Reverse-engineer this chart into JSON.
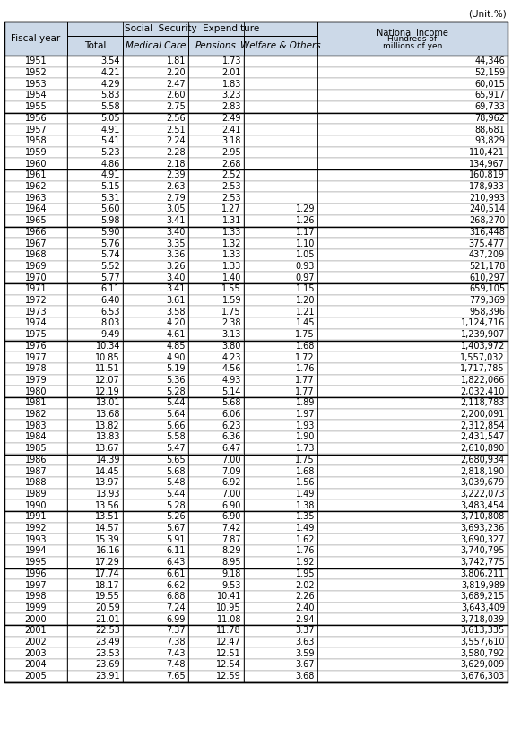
{
  "unit_label": "(Unit:%)",
  "col_headers_row1_text": "Social  Security  Expenditure",
  "col_headers_row2": [
    "Total",
    "Medical Care",
    "Pensions",
    "Welfare & Others"
  ],
  "col_headers_row2_italic": [
    false,
    true,
    true,
    true
  ],
  "fiscal_year_label": "Fiscal year",
  "national_income_label1": "National Income",
  "national_income_label2": "Hundreds of",
  "national_income_label3": "millions of yen",
  "rows": [
    [
      "1951",
      "3.54",
      "1.81",
      "1.73",
      "",
      "44,346"
    ],
    [
      "1952",
      "4.21",
      "2.20",
      "2.01",
      "",
      "52,159"
    ],
    [
      "1953",
      "4.29",
      "2.47",
      "1.83",
      "",
      "60,015"
    ],
    [
      "1954",
      "5.83",
      "2.60",
      "3.23",
      "",
      "65,917"
    ],
    [
      "1955",
      "5.58",
      "2.75",
      "2.83",
      "",
      "69,733"
    ],
    [
      "1956",
      "5.05",
      "2.56",
      "2.49",
      "",
      "78,962"
    ],
    [
      "1957",
      "4.91",
      "2.51",
      "2.41",
      "",
      "88,681"
    ],
    [
      "1958",
      "5.41",
      "2.24",
      "3.18",
      "",
      "93,829"
    ],
    [
      "1959",
      "5.23",
      "2.28",
      "2.95",
      "",
      "110,421"
    ],
    [
      "1960",
      "4.86",
      "2.18",
      "2.68",
      "",
      "134,967"
    ],
    [
      "1961",
      "4.91",
      "2.39",
      "2.52",
      "",
      "160,819"
    ],
    [
      "1962",
      "5.15",
      "2.63",
      "2.53",
      "",
      "178,933"
    ],
    [
      "1963",
      "5.31",
      "2.79",
      "2.53",
      "",
      "210,993"
    ],
    [
      "1964",
      "5.60",
      "3.05",
      "1.27",
      "1.29",
      "240,514"
    ],
    [
      "1965",
      "5.98",
      "3.41",
      "1.31",
      "1.26",
      "268,270"
    ],
    [
      "1966",
      "5.90",
      "3.40",
      "1.33",
      "1.17",
      "316,448"
    ],
    [
      "1967",
      "5.76",
      "3.35",
      "1.32",
      "1.10",
      "375,477"
    ],
    [
      "1968",
      "5.74",
      "3.36",
      "1.33",
      "1.05",
      "437,209"
    ],
    [
      "1969",
      "5.52",
      "3.26",
      "1.33",
      "0.93",
      "521,178"
    ],
    [
      "1970",
      "5.77",
      "3.40",
      "1.40",
      "0.97",
      "610,297"
    ],
    [
      "1971",
      "6.11",
      "3.41",
      "1.55",
      "1.15",
      "659,105"
    ],
    [
      "1972",
      "6.40",
      "3.61",
      "1.59",
      "1.20",
      "779,369"
    ],
    [
      "1973",
      "6.53",
      "3.58",
      "1.75",
      "1.21",
      "958,396"
    ],
    [
      "1974",
      "8.03",
      "4.20",
      "2.38",
      "1.45",
      "1,124,716"
    ],
    [
      "1975",
      "9.49",
      "4.61",
      "3.13",
      "1.75",
      "1,239,907"
    ],
    [
      "1976",
      "10.34",
      "4.85",
      "3.80",
      "1.68",
      "1,403,972"
    ],
    [
      "1977",
      "10.85",
      "4.90",
      "4.23",
      "1.72",
      "1,557,032"
    ],
    [
      "1978",
      "11.51",
      "5.19",
      "4.56",
      "1.76",
      "1,717,785"
    ],
    [
      "1979",
      "12.07",
      "5.36",
      "4.93",
      "1.77",
      "1,822,066"
    ],
    [
      "1980",
      "12.19",
      "5.28",
      "5.14",
      "1.77",
      "2,032,410"
    ],
    [
      "1981",
      "13.01",
      "5.44",
      "5.68",
      "1.89",
      "2,118,783"
    ],
    [
      "1982",
      "13.68",
      "5.64",
      "6.06",
      "1.97",
      "2,200,091"
    ],
    [
      "1983",
      "13.82",
      "5.66",
      "6.23",
      "1.93",
      "2,312,854"
    ],
    [
      "1984",
      "13.83",
      "5.58",
      "6.36",
      "1.90",
      "2,431,547"
    ],
    [
      "1985",
      "13.67",
      "5.47",
      "6.47",
      "1.73",
      "2,610,890"
    ],
    [
      "1986",
      "14.39",
      "5.65",
      "7.00",
      "1.75",
      "2,680,934"
    ],
    [
      "1987",
      "14.45",
      "5.68",
      "7.09",
      "1.68",
      "2,818,190"
    ],
    [
      "1988",
      "13.97",
      "5.48",
      "6.92",
      "1.56",
      "3,039,679"
    ],
    [
      "1989",
      "13.93",
      "5.44",
      "7.00",
      "1.49",
      "3,222,073"
    ],
    [
      "1990",
      "13.56",
      "5.28",
      "6.90",
      "1.38",
      "3,483,454"
    ],
    [
      "1991",
      "13.51",
      "5.26",
      "6.90",
      "1.35",
      "3,710,808"
    ],
    [
      "1992",
      "14.57",
      "5.67",
      "7.42",
      "1.49",
      "3,693,236"
    ],
    [
      "1993",
      "15.39",
      "5.91",
      "7.87",
      "1.62",
      "3,690,327"
    ],
    [
      "1994",
      "16.16",
      "6.11",
      "8.29",
      "1.76",
      "3,740,795"
    ],
    [
      "1995",
      "17.29",
      "6.43",
      "8.95",
      "1.92",
      "3,742,775"
    ],
    [
      "1996",
      "17.74",
      "6.61",
      "9.18",
      "1.95",
      "3,806,211"
    ],
    [
      "1997",
      "18.17",
      "6.62",
      "9.53",
      "2.02",
      "3,819,989"
    ],
    [
      "1998",
      "19.55",
      "6.88",
      "10.41",
      "2.26",
      "3,689,215"
    ],
    [
      "1999",
      "20.59",
      "7.24",
      "10.95",
      "2.40",
      "3,643,409"
    ],
    [
      "2000",
      "21.01",
      "6.99",
      "11.08",
      "2.94",
      "3,718,039"
    ],
    [
      "2001",
      "22.53",
      "7.37",
      "11.78",
      "3.37",
      "3,613,335"
    ],
    [
      "2002",
      "23.49",
      "7.38",
      "12.47",
      "3.63",
      "3,557,610"
    ],
    [
      "2003",
      "23.53",
      "7.43",
      "12.51",
      "3.59",
      "3,580,792"
    ],
    [
      "2004",
      "23.69",
      "7.48",
      "12.54",
      "3.67",
      "3,629,009"
    ],
    [
      "2005",
      "23.91",
      "7.65",
      "12.59",
      "3.68",
      "3,676,303"
    ]
  ],
  "group_end_indices": [
    4,
    9,
    14,
    19,
    24,
    29,
    34,
    39,
    44,
    49
  ],
  "header_bg": "#ccd9e8",
  "text_fontsize": 7.0,
  "header_fontsize": 7.5
}
